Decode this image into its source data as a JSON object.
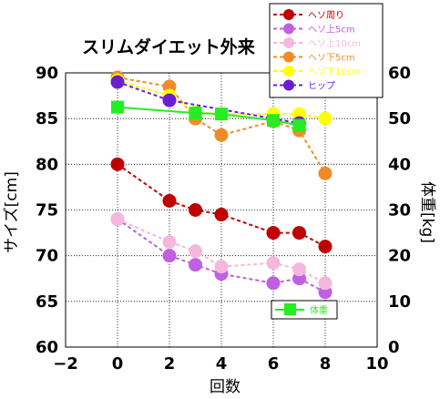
{
  "chart_data": {
    "type": "line",
    "title": "スリムダイエット外来",
    "xlabel": "回数",
    "ylabel_left": "サイズ[cm]",
    "ylabel_right": "体重[kg]",
    "xlim": [
      -2,
      10
    ],
    "xticks": [
      "−2",
      "0",
      "2",
      "4",
      "6",
      "8",
      "10"
    ],
    "ylim_left": [
      60,
      90
    ],
    "yticks_left": [
      "60",
      "65",
      "70",
      "75",
      "80",
      "85",
      "90"
    ],
    "ylim_right": [
      0,
      60
    ],
    "yticks_right": [
      "0",
      "10",
      "20",
      "30",
      "40",
      "50",
      "60"
    ],
    "grid": true,
    "legend_position": "top-right",
    "series": [
      {
        "name": "ヘソ周り",
        "axis": "left",
        "color": "#C00000",
        "marker": "circle",
        "dash": true,
        "x": [
          0,
          2,
          3,
          4,
          6,
          7,
          8
        ],
        "y": [
          80.0,
          76.0,
          75.0,
          74.5,
          72.5,
          72.5,
          71.0
        ]
      },
      {
        "name": "ヘソ上5cm",
        "axis": "left",
        "color": "#C060E0",
        "marker": "circle",
        "dash": true,
        "x": [
          0,
          2,
          3,
          4,
          6,
          7,
          8
        ],
        "y": [
          74.0,
          70.0,
          69.0,
          68.0,
          67.0,
          67.5,
          66.0
        ]
      },
      {
        "name": "ヘソ上10cm",
        "axis": "left",
        "color": "#F5B8DC",
        "marker": "circle",
        "dash": true,
        "x": [
          0,
          2,
          3,
          4,
          6,
          7,
          8
        ],
        "y": [
          74.0,
          71.5,
          70.5,
          68.8,
          69.2,
          68.5,
          67.0
        ]
      },
      {
        "name": "ヘソ下5cm",
        "axis": "left",
        "color": "#F08C28",
        "marker": "circle",
        "dash": true,
        "x": [
          0,
          2,
          3,
          4,
          6,
          7,
          8
        ],
        "y": [
          89.5,
          88.5,
          85.0,
          83.2,
          84.7,
          83.7,
          79.0
        ]
      },
      {
        "name": "ヘソ下10cm",
        "axis": "left",
        "color": "#FFFF00",
        "marker": "circle",
        "dash": true,
        "x": [
          0,
          2,
          3,
          4,
          6,
          7,
          8
        ],
        "y": [
          89.2,
          87.5,
          85.7,
          85.5,
          85.5,
          85.5,
          85.0
        ]
      },
      {
        "name": "ヒップ",
        "axis": "left",
        "color": "#6A1FD0",
        "marker": "circle",
        "dash": true,
        "x": [
          0,
          2,
          7
        ],
        "y": [
          89.0,
          87.0,
          84.5
        ]
      },
      {
        "name": "体重",
        "axis": "right",
        "color": "#22EE22",
        "marker": "square",
        "dash": false,
        "x": [
          0,
          3,
          4,
          6,
          7
        ],
        "y": [
          52.5,
          51.2,
          51.0,
          49.6,
          48.5
        ]
      }
    ]
  }
}
